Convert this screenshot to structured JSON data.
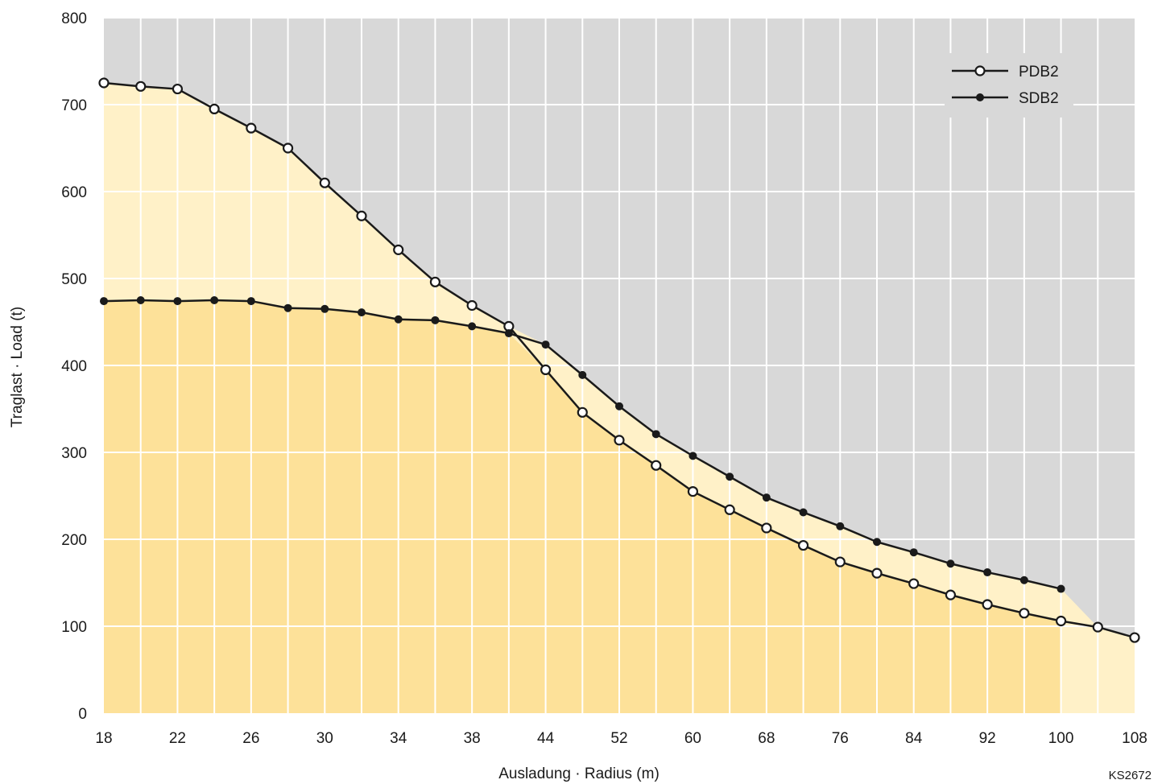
{
  "chart_data": {
    "type": "area",
    "xlabel": "Ausladung · Radius (m)",
    "ylabel": "Traglast · Load (t)",
    "code": "KS2672",
    "ylim": [
      0,
      800
    ],
    "y_ticks": [
      0,
      100,
      200,
      300,
      400,
      500,
      600,
      700,
      800
    ],
    "x": [
      18,
      20,
      22,
      24,
      26,
      28,
      30,
      32,
      34,
      36,
      38,
      40,
      44,
      48,
      52,
      56,
      60,
      64,
      68,
      72,
      76,
      80,
      84,
      88,
      92,
      96,
      100,
      104,
      108
    ],
    "x_tick_labels": [
      "18",
      "22",
      "26",
      "30",
      "34",
      "38",
      "44",
      "52",
      "60",
      "68",
      "76",
      "84",
      "92",
      "100",
      "108"
    ],
    "grid": true,
    "legend_position": "top-right",
    "series": [
      {
        "name": "PDB2",
        "marker": "open-circle",
        "values": [
          725,
          721,
          718,
          695,
          673,
          650,
          610,
          572,
          533,
          496,
          469,
          445,
          395,
          346,
          314,
          285,
          255,
          234,
          213,
          193,
          174,
          161,
          149,
          136,
          125,
          115,
          106,
          99,
          87
        ]
      },
      {
        "name": "SDB2",
        "marker": "filled-circle",
        "values": [
          474,
          475,
          474,
          475,
          474,
          466,
          465,
          461,
          453,
          452,
          445,
          437,
          424,
          389,
          353,
          321,
          296,
          272,
          248,
          231,
          215,
          197,
          185,
          172,
          162,
          153,
          143,
          null,
          null
        ]
      }
    ],
    "colors": {
      "background": "#d8d8d8",
      "grid": "#ffffff",
      "fill_light": "#fff1c8",
      "fill_dark": "#fde199",
      "line": "#1a1a1a"
    }
  }
}
